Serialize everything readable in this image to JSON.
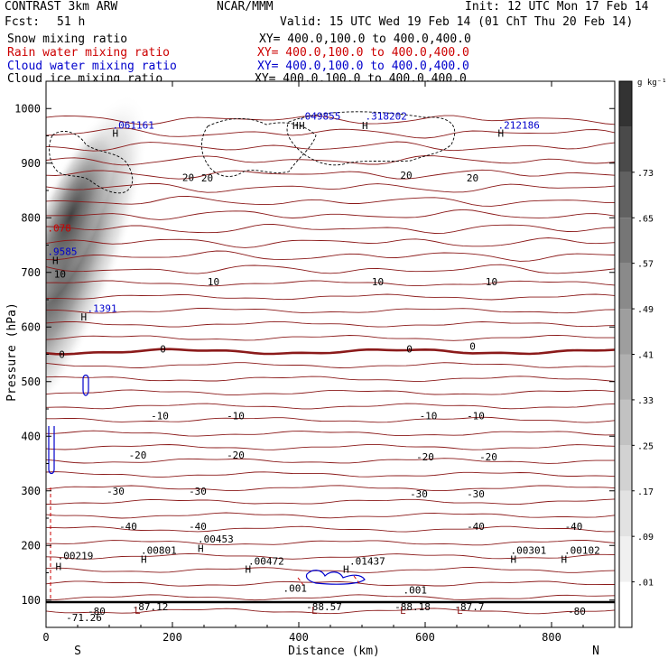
{
  "header": {
    "model": "CONTRAST  3km ARW",
    "org": "NCAR/MMM",
    "init": "Init: 12 UTC Mon 17 Feb 14",
    "fcst_label": "Fcst:",
    "fcst_value": "51 h",
    "valid": "Valid: 15 UTC Wed 19 Feb 14 (01 ChT Thu 20 Feb 14)"
  },
  "fields": [
    {
      "label": "Snow mixing ratio",
      "xy": "XY= 400.0,100.0 to 400.0,400.0",
      "color": "#000000"
    },
    {
      "label": "Rain water mixing ratio",
      "xy": "XY= 400.0,100.0 to 400.0,400.0",
      "color": "#cc0000"
    },
    {
      "label": "Cloud water mixing ratio",
      "xy": "XY= 400.0,100.0 to 400.0,400.0",
      "color": "#0000cc"
    },
    {
      "label": "Cloud ice mixing ratio",
      "xy": "XY= 400.0,100.0 to 400.0,400.0",
      "color": "#000000"
    }
  ],
  "chart_data": {
    "type": "heatmap",
    "xlabel": "Distance (km)",
    "ylabel": "Pressure (hPa)",
    "xlim": [
      0,
      900
    ],
    "ylim": [
      1050,
      50
    ],
    "x_ticks": [
      "0",
      "200",
      "400",
      "600",
      "800"
    ],
    "y_ticks": [
      "100",
      "200",
      "300",
      "400",
      "500",
      "600",
      "700",
      "800",
      "900",
      "1000"
    ],
    "x_end_labels": {
      "left": "S",
      "right": "N"
    },
    "colorbar": {
      "unit": "g kg⁻¹",
      "ticks": [
        ".01",
        ".09",
        ".17",
        ".25",
        ".33",
        ".41",
        ".49",
        ".57",
        ".65",
        ".73"
      ],
      "colors": [
        "#ffffff",
        "#f0f0f0",
        "#e2e2e2",
        "#d2d2d2",
        "#c2c2c2",
        "#b0b0b0",
        "#9e9e9e",
        "#8a8a8a",
        "#767676",
        "#616161",
        "#4a4a4a",
        "#333333"
      ]
    },
    "temperature_labels": [
      {
        "x": 80,
        "p": 80,
        "text": "-80"
      },
      {
        "x": 840,
        "p": 80,
        "text": "-80"
      },
      {
        "x": 60,
        "p": 68,
        "text": "-71.26"
      },
      {
        "x": 165,
        "p": 88,
        "text": "-87.12"
      },
      {
        "x": 440,
        "p": 88,
        "text": "-88.57"
      },
      {
        "x": 580,
        "p": 88,
        "text": "-88.18"
      },
      {
        "x": 670,
        "p": 88,
        "text": "-87.7"
      },
      {
        "x": 130,
        "p": 235,
        "text": "-40"
      },
      {
        "x": 240,
        "p": 235,
        "text": "-40"
      },
      {
        "x": 680,
        "p": 235,
        "text": "-40"
      },
      {
        "x": 835,
        "p": 235,
        "text": "-40"
      },
      {
        "x": 110,
        "p": 300,
        "text": "-30"
      },
      {
        "x": 240,
        "p": 300,
        "text": "-30"
      },
      {
        "x": 590,
        "p": 295,
        "text": "-30"
      },
      {
        "x": 680,
        "p": 295,
        "text": "-30"
      },
      {
        "x": 145,
        "p": 366,
        "text": "-20"
      },
      {
        "x": 300,
        "p": 366,
        "text": "-20"
      },
      {
        "x": 600,
        "p": 362,
        "text": "-20"
      },
      {
        "x": 700,
        "p": 362,
        "text": "-20"
      },
      {
        "x": 180,
        "p": 438,
        "text": "-10"
      },
      {
        "x": 300,
        "p": 438,
        "text": "-10"
      },
      {
        "x": 605,
        "p": 438,
        "text": "-10"
      },
      {
        "x": 680,
        "p": 438,
        "text": "-10"
      },
      {
        "x": 25,
        "p": 550,
        "text": "0"
      },
      {
        "x": 185,
        "p": 560,
        "text": "0"
      },
      {
        "x": 575,
        "p": 560,
        "text": "0"
      },
      {
        "x": 675,
        "p": 565,
        "text": "0"
      },
      {
        "x": 22,
        "p": 697,
        "text": "10"
      },
      {
        "x": 265,
        "p": 683,
        "text": "10"
      },
      {
        "x": 525,
        "p": 683,
        "text": "10"
      },
      {
        "x": 705,
        "p": 683,
        "text": "10"
      },
      {
        "x": 225,
        "p": 874,
        "text": "20"
      },
      {
        "x": 255,
        "p": 873,
        "text": "20"
      },
      {
        "x": 570,
        "p": 878,
        "text": "20"
      },
      {
        "x": 675,
        "p": 873,
        "text": "20"
      }
    ],
    "extremum_labels": [
      {
        "x": 18,
        "p": 175,
        "text": ".00219",
        "color": "#000000"
      },
      {
        "x": 150,
        "p": 185,
        "text": ".00801",
        "color": "#000000"
      },
      {
        "x": 240,
        "p": 205,
        "text": ".00453",
        "color": "#000000"
      },
      {
        "x": 320,
        "p": 165,
        "text": ".00472",
        "color": "#000000"
      },
      {
        "x": 480,
        "p": 165,
        "text": ".01437",
        "color": "#000000"
      },
      {
        "x": 375,
        "p": 115,
        "text": ".001",
        "color": "#000000"
      },
      {
        "x": 565,
        "p": 112,
        "text": ".001",
        "color": "#000000"
      },
      {
        "x": 735,
        "p": 185,
        "text": ".00301",
        "color": "#000000"
      },
      {
        "x": 820,
        "p": 185,
        "text": ".00102",
        "color": "#000000"
      },
      {
        "x": 65,
        "p": 628,
        "text": ".1391",
        "color": "#0000cc"
      },
      {
        "x": 2,
        "p": 732,
        "text": ".9585",
        "color": "#0000cc"
      },
      {
        "x": 2,
        "p": 775,
        "text": ".078",
        "color": "#cc0000"
      },
      {
        "x": 105,
        "p": 963,
        "text": ".061161",
        "color": "#0000cc"
      },
      {
        "x": 400,
        "p": 980,
        "text": ".049855",
        "color": "#0000cc"
      },
      {
        "x": 505,
        "p": 980,
        "text": ".318202",
        "color": "#0000cc"
      },
      {
        "x": 715,
        "p": 963,
        "text": ".212186",
        "color": "#0000cc"
      }
    ],
    "high_markers": [
      {
        "x": 15,
        "p": 155,
        "text": "H"
      },
      {
        "x": 150,
        "p": 168,
        "text": "H"
      },
      {
        "x": 240,
        "p": 188,
        "text": "H"
      },
      {
        "x": 315,
        "p": 150,
        "text": "H"
      },
      {
        "x": 470,
        "p": 150,
        "text": "H"
      },
      {
        "x": 735,
        "p": 168,
        "text": "H"
      },
      {
        "x": 815,
        "p": 168,
        "text": "H"
      },
      {
        "x": 55,
        "p": 612,
        "text": "H"
      },
      {
        "x": 10,
        "p": 715,
        "text": "H"
      },
      {
        "x": 105,
        "p": 948,
        "text": "H"
      },
      {
        "x": 390,
        "p": 962,
        "text": "H"
      },
      {
        "x": 400,
        "p": 962,
        "text": "H"
      },
      {
        "x": 500,
        "p": 962,
        "text": "H"
      },
      {
        "x": 715,
        "p": 948,
        "text": "H"
      }
    ],
    "low_markers": [
      {
        "x": 140,
        "p": 75,
        "text": "L"
      },
      {
        "x": 420,
        "p": 75,
        "text": "L"
      },
      {
        "x": 560,
        "p": 75,
        "text": "L"
      },
      {
        "x": 650,
        "p": 75,
        "text": "L"
      }
    ]
  }
}
